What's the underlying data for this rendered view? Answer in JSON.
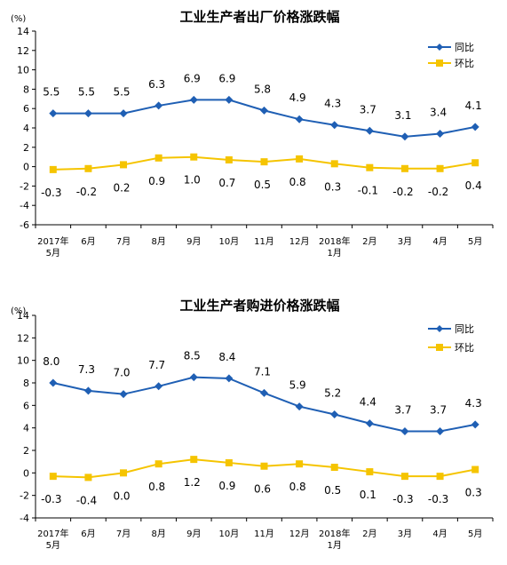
{
  "colors": {
    "yoy": "#1F5FB4",
    "mom": "#F5C400",
    "axis": "#000000"
  },
  "chart_data": [
    {
      "type": "line",
      "title": "工业生产者出厂价格涨跌幅",
      "unit": "(%)",
      "ylim": [
        -6,
        14
      ],
      "yticks": [
        -6,
        -4,
        -2,
        0,
        2,
        4,
        6,
        8,
        10,
        12,
        14
      ],
      "categories": [
        [
          "2017年",
          "5月"
        ],
        [
          "6月"
        ],
        [
          "7月"
        ],
        [
          "8月"
        ],
        [
          "9月"
        ],
        [
          "10月"
        ],
        [
          "11月"
        ],
        [
          "12月"
        ],
        [
          "2018年",
          "1月"
        ],
        [
          "2月"
        ],
        [
          "3月"
        ],
        [
          "4月"
        ],
        [
          "5月"
        ]
      ],
      "legend_position": "top-right",
      "series": [
        {
          "name": "同比",
          "color": "#1F5FB4",
          "marker": "diamond",
          "label_position": "above",
          "values": [
            5.5,
            5.5,
            5.5,
            6.3,
            6.9,
            6.9,
            5.8,
            4.9,
            4.3,
            3.7,
            3.1,
            3.4,
            4.1
          ],
          "labels": [
            "5.5",
            "5.5",
            "5.5",
            "6.3",
            "6.9",
            "6.9",
            "5.8",
            "4.9",
            "4.3",
            "3.7",
            "3.1",
            "3.4",
            "4.1"
          ]
        },
        {
          "name": "环比",
          "color": "#F5C400",
          "marker": "square",
          "label_position": "below",
          "values": [
            -0.3,
            -0.2,
            0.2,
            0.9,
            1.0,
            0.7,
            0.5,
            0.8,
            0.3,
            -0.1,
            -0.2,
            -0.2,
            0.4
          ],
          "labels": [
            "-0.3",
            "-0.2",
            "0.2",
            "0.9",
            "1.0",
            "0.7",
            "0.5",
            "0.8",
            "0.3",
            "-0.1",
            "-0.2",
            "-0.2",
            "0.4"
          ]
        }
      ]
    },
    {
      "type": "line",
      "title": "工业生产者购进价格涨跌幅",
      "unit": "(%)",
      "ylim": [
        -4,
        14
      ],
      "yticks": [
        -4,
        -2,
        0,
        2,
        4,
        6,
        8,
        10,
        12,
        14
      ],
      "categories": [
        [
          "2017年",
          "5月"
        ],
        [
          "6月"
        ],
        [
          "7月"
        ],
        [
          "8月"
        ],
        [
          "9月"
        ],
        [
          "10月"
        ],
        [
          "11月"
        ],
        [
          "12月"
        ],
        [
          "2018年",
          "1月"
        ],
        [
          "2月"
        ],
        [
          "3月"
        ],
        [
          "4月"
        ],
        [
          "5月"
        ]
      ],
      "legend_position": "top-right",
      "series": [
        {
          "name": "同比",
          "color": "#1F5FB4",
          "marker": "diamond",
          "label_position": "above",
          "values": [
            8.0,
            7.3,
            7.0,
            7.7,
            8.5,
            8.4,
            7.1,
            5.9,
            5.2,
            4.4,
            3.7,
            3.7,
            4.3
          ],
          "labels": [
            "8.0",
            "7.3",
            "7.0",
            "7.7",
            "8.5",
            "8.4",
            "7.1",
            "5.9",
            "5.2",
            "4.4",
            "3.7",
            "3.7",
            "4.3"
          ]
        },
        {
          "name": "环比",
          "color": "#F5C400",
          "marker": "square",
          "label_position": "below",
          "values": [
            -0.3,
            -0.4,
            0.0,
            0.8,
            1.2,
            0.9,
            0.6,
            0.8,
            0.5,
            0.1,
            -0.3,
            -0.3,
            0.3
          ],
          "labels": [
            "-0.3",
            "-0.4",
            "0.0",
            "0.8",
            "1.2",
            "0.9",
            "0.6",
            "0.8",
            "0.5",
            "0.1",
            "-0.3",
            "-0.3",
            "0.3"
          ]
        }
      ]
    }
  ]
}
